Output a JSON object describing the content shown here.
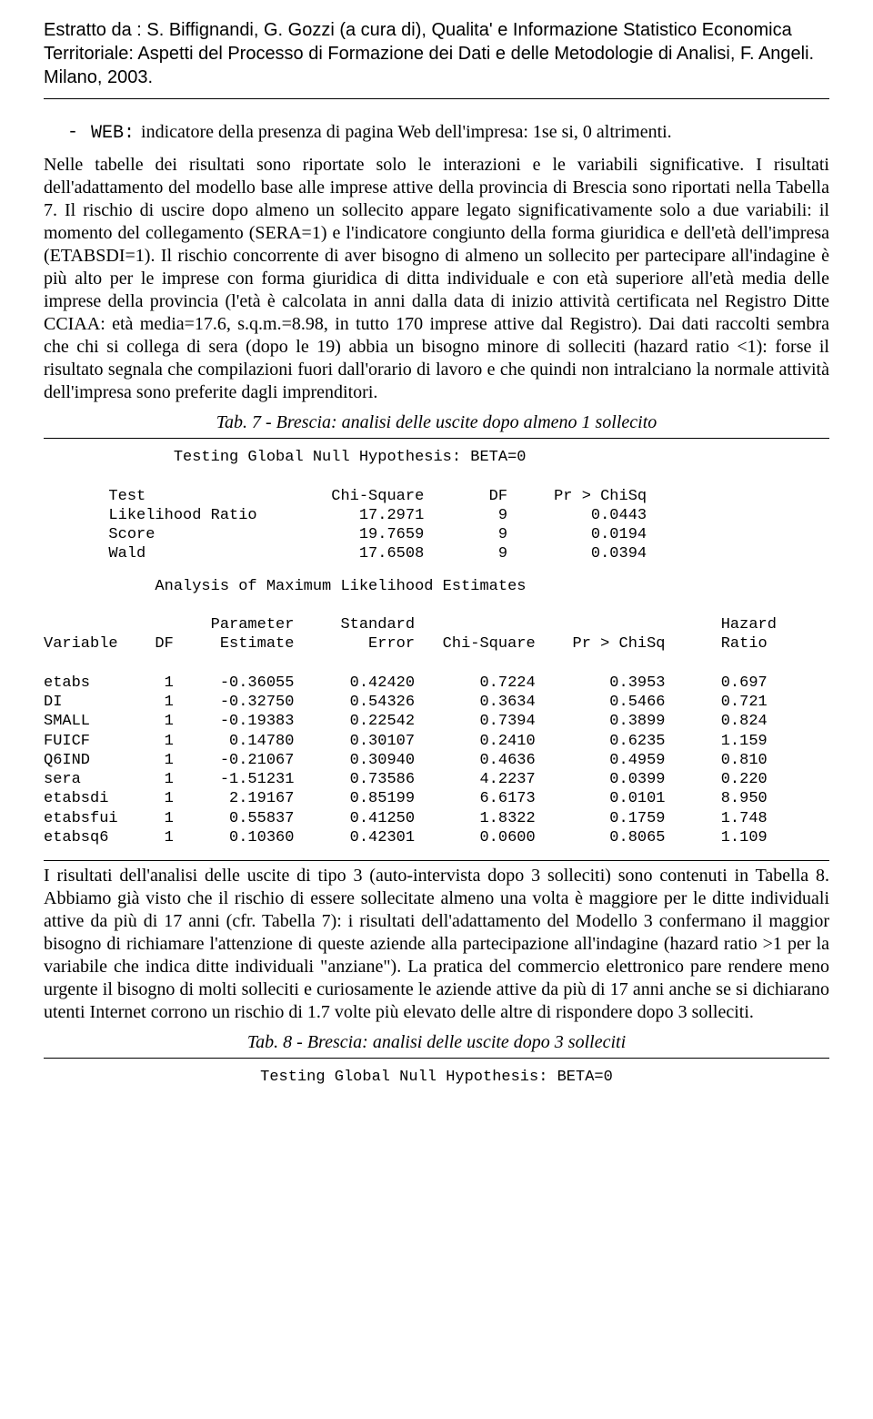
{
  "header": {
    "citation": "Estratto da : S. Biffignandi, G. Gozzi (a cura di),  Qualita' e Informazione Statistico Economica Territoriale: Aspetti del Processo di Formazione dei Dati e delle Metodologie di Analisi, F. Angeli. Milano, 2003."
  },
  "bullet": {
    "code": "WEB:",
    "text": "indicatore della presenza di pagina Web dell'impresa: 1se si, 0 altrimenti."
  },
  "para1": "Nelle tabelle dei risultati sono riportate solo le interazioni e le variabili significative. I risultati dell'adattamento del modello base alle imprese attive della provincia di Brescia sono riportati nella Tabella 7. Il rischio di uscire dopo almeno un sollecito appare legato significativamente solo a due variabili: il momento del collegamento (SERA=1) e l'indicatore congiunto della forma giuridica e dell'età dell'impresa (ETABSDI=1). Il rischio concorrente di aver bisogno di almeno un sollecito per partecipare all'indagine è più alto per le imprese con forma giuridica di ditta individuale e con età superiore all'età media delle imprese della provincia (l'età è calcolata in anni dalla data di inizio attività certificata nel Registro Ditte CCIAA: età media=17.6, s.q.m.=8.98, in tutto 170 imprese attive dal Registro). Dai dati raccolti sembra che chi si collega di sera (dopo le 19) abbia un bisogno minore di solleciti (hazard ratio <1): forse il risultato segnala che compilazioni fuori dall'orario di lavoro e che quindi non intralciano la normale attività dell'impresa sono preferite dagli imprenditori.",
  "tab7": {
    "title": "Tab. 7  - Brescia: analisi delle uscite dopo almeno 1 sollecito",
    "global_title": "Testing Global Null Hypothesis: BETA=0",
    "global_header": "Test                    Chi-Square       DF     Pr > ChiSq",
    "global_rows": [
      "Likelihood Ratio           17.2971        9         0.0443",
      "Score                      19.7659        9         0.0194",
      "Wald                       17.6508        9         0.0394"
    ],
    "mle_title": "Analysis of Maximum Likelihood Estimates",
    "mle_header1": "                  Parameter     Standard                                 Hazard",
    "mle_header2": "Variable    DF     Estimate        Error   Chi-Square    Pr > ChiSq      Ratio",
    "mle_rows": [
      "etabs        1     -0.36055      0.42420       0.7224        0.3953      0.697",
      "DI           1     -0.32750      0.54326       0.3634        0.5466      0.721",
      "SMALL        1     -0.19383      0.22542       0.7394        0.3899      0.824",
      "FUICF        1      0.14780      0.30107       0.2410        0.6235      1.159",
      "Q6IND        1     -0.21067      0.30940       0.4636        0.4959      0.810",
      "sera         1     -1.51231      0.73586       4.2237        0.0399      0.220",
      "etabsdi      1      2.19167      0.85199       6.6173        0.0101      8.950",
      "etabsfui     1      0.55837      0.41250       1.8322        0.1759      1.748",
      "etabsq6      1      0.10360      0.42301       0.0600        0.8065      1.109"
    ]
  },
  "para2": "I risultati dell'analisi delle uscite di tipo 3 (auto-intervista dopo 3 solleciti) sono contenuti in Tabella 8. Abbiamo già visto che il rischio di essere sollecitate almeno una volta è maggiore per le ditte individuali attive da più di 17 anni (cfr. Tabella 7): i risultati dell'adattamento del Modello 3 confermano il maggior bisogno di richiamare l'attenzione di queste aziende alla partecipazione all'indagine (hazard ratio >1 per la variabile che indica ditte individuali \"anziane\"). La pratica del commercio elettronico pare rendere meno urgente il bisogno di molti solleciti e curiosamente le aziende attive da più di 17 anni anche se si dichiarano utenti Internet corrono un rischio di 1.7 volte più elevato delle altre di rispondere dopo 3 solleciti.",
  "tab8": {
    "title": "Tab. 8  - Brescia: analisi delle uscite dopo 3 solleciti",
    "global_title": "Testing Global Null Hypothesis: BETA=0"
  }
}
